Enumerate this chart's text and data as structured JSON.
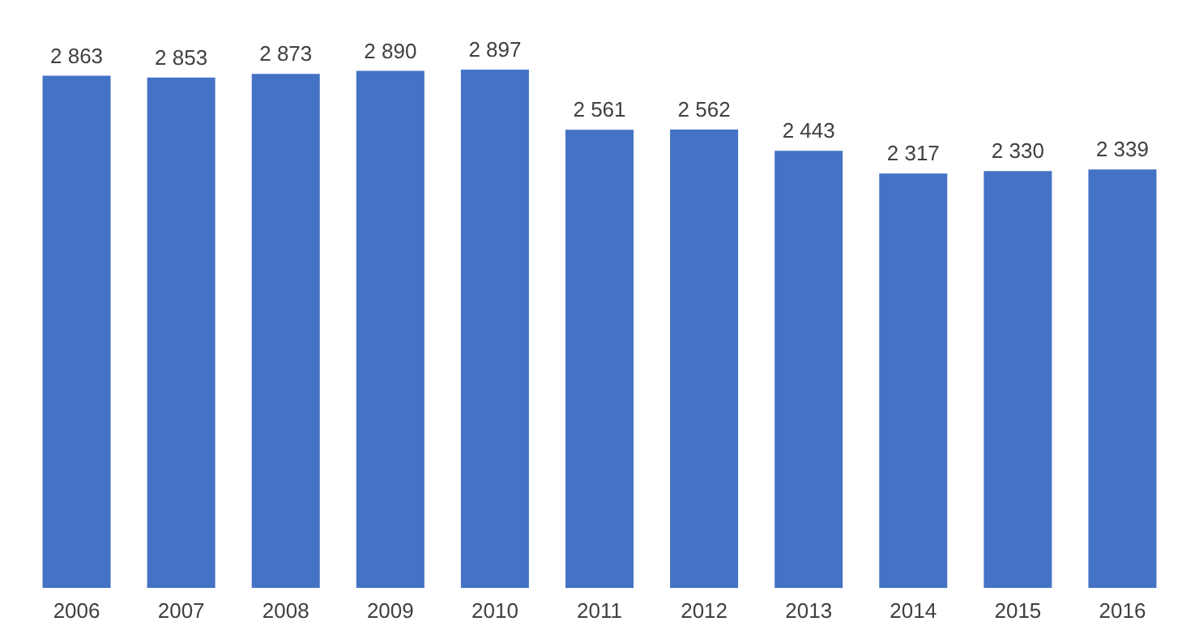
{
  "chart_data": {
    "type": "bar",
    "categories": [
      "2006",
      "2007",
      "2008",
      "2009",
      "2010",
      "2011",
      "2012",
      "2013",
      "2014",
      "2015",
      "2016"
    ],
    "values": [
      2863,
      2853,
      2873,
      2890,
      2897,
      2561,
      2562,
      2443,
      2317,
      2330,
      2339
    ],
    "value_labels": [
      "2 863",
      "2 853",
      "2 873",
      "2 890",
      "2 897",
      "2 561",
      "2 562",
      "2 443",
      "2 317",
      "2 330",
      "2 339"
    ],
    "color": "#4472c4"
  }
}
